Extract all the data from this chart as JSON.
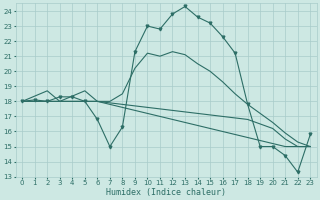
{
  "xlabel": "Humidex (Indice chaleur)",
  "bg_color": "#cde8e3",
  "grid_color": "#a8ccca",
  "line_color": "#2d6e66",
  "xlim": [
    -0.5,
    23.5
  ],
  "ylim": [
    13,
    24.5
  ],
  "yticks": [
    13,
    14,
    15,
    16,
    17,
    18,
    19,
    20,
    21,
    22,
    23,
    24
  ],
  "xticks": [
    0,
    1,
    2,
    3,
    4,
    5,
    6,
    7,
    8,
    9,
    10,
    11,
    12,
    13,
    14,
    15,
    16,
    17,
    18,
    19,
    20,
    21,
    22,
    23
  ],
  "series_main": [
    18.0,
    18.1,
    18.0,
    18.3,
    18.3,
    18.0,
    16.8,
    15.0,
    16.3,
    21.3,
    23.0,
    22.8,
    23.8,
    24.3,
    23.6,
    23.2,
    22.3,
    21.2,
    17.8,
    15.0,
    15.0,
    14.4,
    13.3,
    15.8
  ],
  "series_linear": [
    18.0,
    18.35,
    18.7,
    18.0,
    18.35,
    18.7,
    18.0,
    18.0,
    18.5,
    20.2,
    21.2,
    21.0,
    21.3,
    21.1,
    20.5,
    20.0,
    19.3,
    18.5,
    17.8,
    17.2,
    16.6,
    15.9,
    15.3,
    15.0
  ],
  "series_flat1": [
    18.0,
    18.0,
    18.0,
    18.0,
    18.0,
    18.0,
    18.0,
    17.9,
    17.8,
    17.7,
    17.6,
    17.5,
    17.4,
    17.3,
    17.2,
    17.1,
    17.0,
    16.9,
    16.8,
    16.5,
    16.2,
    15.5,
    15.0,
    15.0
  ],
  "series_flat2": [
    18.0,
    18.0,
    18.0,
    18.0,
    18.0,
    18.0,
    18.0,
    17.8,
    17.6,
    17.4,
    17.2,
    17.0,
    16.8,
    16.6,
    16.4,
    16.2,
    16.0,
    15.8,
    15.6,
    15.4,
    15.2,
    15.0,
    15.0,
    15.0
  ]
}
